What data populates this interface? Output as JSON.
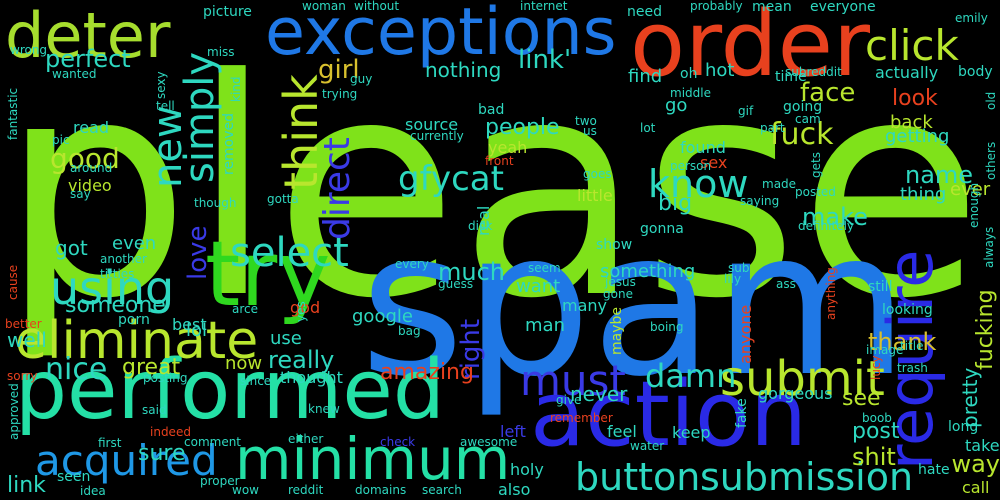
{
  "background": "#000000",
  "words": [
    {
      "text": "please",
      "color": "#7fe21a"
    },
    {
      "text": "spam",
      "color": "#1f78e6"
    },
    {
      "text": "order",
      "color": "#e8411e"
    },
    {
      "text": "exceptions",
      "color": "#1f78e6"
    },
    {
      "text": "deter",
      "color": "#a6dd2e"
    },
    {
      "text": "try",
      "color": "#2fd81f"
    },
    {
      "text": "performed",
      "color": "#24e0a6"
    },
    {
      "text": "action",
      "color": "#2a2ae6"
    },
    {
      "text": "minimum",
      "color": "#24e0a6"
    },
    {
      "text": "eliminate",
      "color": "#b8e62e"
    },
    {
      "text": "require",
      "color": "#2a2ae6"
    },
    {
      "text": "submit",
      "color": "#b8e62e"
    },
    {
      "text": "acquired",
      "color": "#1f98e6"
    },
    {
      "text": "click",
      "color": "#b8e62e"
    },
    {
      "text": "button",
      "color": "#2ed8c0"
    },
    {
      "text": "submission",
      "color": "#2ed8c0"
    },
    {
      "text": "must",
      "color": "#3a3ae6"
    },
    {
      "text": "using",
      "color": "#2ed8c0"
    },
    {
      "text": "select",
      "color": "#2ed8c0"
    },
    {
      "text": "think",
      "color": "#b8e62e"
    },
    {
      "text": "direct",
      "color": "#3a3ae6"
    },
    {
      "text": "new",
      "color": "#2ed8c0"
    },
    {
      "text": "simply",
      "color": "#2ed8c0"
    },
    {
      "text": "know",
      "color": "#2ed8c0"
    },
    {
      "text": "gfycat",
      "color": "#2ed8c0"
    },
    {
      "text": "nice",
      "color": "#2ed8c0"
    },
    {
      "text": "damn",
      "color": "#2ed8c0"
    },
    {
      "text": "link'",
      "color": "#2ed8c0"
    },
    {
      "text": "perfect",
      "color": "#2ed8c0"
    },
    {
      "text": "girl",
      "color": "#d8c02e"
    },
    {
      "text": "love",
      "color": "#3a3ae6"
    },
    {
      "text": "good",
      "color": "#b8e62e"
    },
    {
      "text": "people",
      "color": "#2ed8c0"
    },
    {
      "text": "fuck",
      "color": "#b8e62e"
    },
    {
      "text": "face",
      "color": "#b8e62e"
    },
    {
      "text": "name",
      "color": "#2ed8c0"
    },
    {
      "text": "really",
      "color": "#2ed8c0"
    },
    {
      "text": "someone",
      "color": "#2ed8c0"
    },
    {
      "text": "fucking",
      "color": "#b8e62e"
    },
    {
      "text": "thank",
      "color": "#d8c02e"
    },
    {
      "text": "great",
      "color": "#b8e62e"
    },
    {
      "text": "sure",
      "color": "#2ed8c0"
    },
    {
      "text": "shit",
      "color": "#b8e62e"
    },
    {
      "text": "make",
      "color": "#2ed8c0"
    },
    {
      "text": "post",
      "color": "#2ed8c0"
    },
    {
      "text": "way",
      "color": "#b8e62e"
    },
    {
      "text": "see",
      "color": "#b8e62e"
    },
    {
      "text": "pretty",
      "color": "#2ed8c0"
    },
    {
      "text": "right",
      "color": "#3a3ae6"
    },
    {
      "text": "amazing",
      "color": "#e8411e"
    },
    {
      "text": "much",
      "color": "#2ed8c0"
    },
    {
      "text": "got",
      "color": "#2ed8c0"
    },
    {
      "text": "even",
      "color": "#2ed8c0"
    },
    {
      "text": "link",
      "color": "#2ed8c0"
    },
    {
      "text": "well",
      "color": "#2ed8c0"
    },
    {
      "text": "now",
      "color": "#b8e62e"
    },
    {
      "text": "never",
      "color": "#2ed8c0"
    },
    {
      "text": "look",
      "color": "#e8411e"
    },
    {
      "text": "hot",
      "color": "#2ed8c0"
    },
    {
      "text": "find",
      "color": "#2ed8c0"
    },
    {
      "text": "nothing",
      "color": "#2ed8c0"
    },
    {
      "text": "go",
      "color": "#2ed8c0"
    },
    {
      "text": "big",
      "color": "#2ed8c0"
    },
    {
      "text": "video",
      "color": "#b8e62e"
    },
    {
      "text": "read",
      "color": "#2ed8c0"
    },
    {
      "text": "source",
      "color": "#2ed8c0"
    },
    {
      "text": "yeah",
      "color": "#b8e62e"
    },
    {
      "text": "found",
      "color": "#2ed8c0"
    },
    {
      "text": "sex",
      "color": "#e8411e"
    },
    {
      "text": "little",
      "color": "#b8e62e"
    },
    {
      "text": "thing",
      "color": "#2ed8c0"
    },
    {
      "text": "ever",
      "color": "#b8e62e"
    },
    {
      "text": "back",
      "color": "#b8e62e"
    },
    {
      "text": "getting",
      "color": "#2ed8c0"
    },
    {
      "text": "actually",
      "color": "#2ed8c0"
    },
    {
      "text": "gorgeous",
      "color": "#2ed8c0"
    },
    {
      "text": "google",
      "color": "#2ed8c0"
    },
    {
      "text": "man",
      "color": "#2ed8c0"
    },
    {
      "text": "want",
      "color": "#2ed8c0"
    },
    {
      "text": "many",
      "color": "#2ed8c0"
    },
    {
      "text": "something",
      "color": "#2ed8c0"
    },
    {
      "text": "lol",
      "color": "#2ed8c0"
    },
    {
      "text": "best",
      "color": "#2ed8c0"
    },
    {
      "text": "use",
      "color": "#2ed8c0"
    },
    {
      "text": "thought",
      "color": "#2ed8c0"
    },
    {
      "text": "keep",
      "color": "#2ed8c0"
    },
    {
      "text": "feel",
      "color": "#2ed8c0"
    },
    {
      "text": "left",
      "color": "#3a3ae6"
    },
    {
      "text": "holy",
      "color": "#2ed8c0"
    },
    {
      "text": "also",
      "color": "#2ed8c0"
    },
    {
      "text": "call",
      "color": "#b8e62e"
    },
    {
      "text": "take",
      "color": "#2ed8c0"
    },
    {
      "text": "hate",
      "color": "#2ed8c0"
    },
    {
      "text": "long",
      "color": "#2ed8c0"
    },
    {
      "text": "anyone",
      "color": "#e8411e"
    },
    {
      "text": "maybe",
      "color": "#b8e62e"
    },
    {
      "text": "still",
      "color": "#2ed8c0"
    },
    {
      "text": "looking",
      "color": "#2ed8c0"
    },
    {
      "text": "real",
      "color": "#2ed8c0"
    },
    {
      "text": "gonna",
      "color": "#2ed8c0"
    },
    {
      "text": "show",
      "color": "#2ed8c0"
    },
    {
      "text": "god",
      "color": "#e8411e"
    },
    {
      "text": "porn",
      "color": "#2ed8c0"
    },
    {
      "text": "seen",
      "color": "#2ed8c0"
    },
    {
      "text": "sorry",
      "color": "#e8411e"
    },
    {
      "text": "better",
      "color": "#e8411e"
    },
    {
      "text": "cause",
      "color": "#e8411e"
    },
    {
      "text": "approved",
      "color": "#2ed8c0"
    },
    {
      "text": "fantastic",
      "color": "#2ed8c0"
    },
    {
      "text": "wrong",
      "color": "#2ed8c0"
    },
    {
      "text": "wanted",
      "color": "#2ed8c0"
    },
    {
      "text": "pic",
      "color": "#2ed8c0"
    },
    {
      "text": "around",
      "color": "#2ed8c0"
    },
    {
      "text": "say",
      "color": "#2ed8c0"
    },
    {
      "text": "removed",
      "color": "#2ed8c0"
    },
    {
      "text": "though",
      "color": "#2ed8c0"
    },
    {
      "text": "gotta",
      "color": "#2ed8c0"
    },
    {
      "text": "sexy",
      "color": "#2ed8c0"
    },
    {
      "text": "tell",
      "color": "#2ed8c0"
    },
    {
      "text": "kind",
      "color": "#2ed8c0"
    },
    {
      "text": "guy",
      "color": "#2ed8c0"
    },
    {
      "text": "trying",
      "color": "#2ed8c0"
    },
    {
      "text": "miss",
      "color": "#2ed8c0"
    },
    {
      "text": "picture",
      "color": "#2ed8c0"
    },
    {
      "text": "woman",
      "color": "#2ed8c0"
    },
    {
      "text": "without",
      "color": "#2ed8c0"
    },
    {
      "text": "internet",
      "color": "#2ed8c0"
    },
    {
      "text": "need",
      "color": "#2ed8c0"
    },
    {
      "text": "probably",
      "color": "#2ed8c0"
    },
    {
      "text": "mean",
      "color": "#2ed8c0"
    },
    {
      "text": "everyone",
      "color": "#2ed8c0"
    },
    {
      "text": "emily",
      "color": "#2ed8c0"
    },
    {
      "text": "body",
      "color": "#2ed8c0"
    },
    {
      "text": "old",
      "color": "#2ed8c0"
    },
    {
      "text": "others",
      "color": "#2ed8c0"
    },
    {
      "text": "enough",
      "color": "#2ed8c0"
    },
    {
      "text": "always",
      "color": "#2ed8c0"
    },
    {
      "text": "subreddit",
      "color": "#2ed8c0"
    },
    {
      "text": "time",
      "color": "#2ed8c0"
    },
    {
      "text": "oh",
      "color": "#2ed8c0"
    },
    {
      "text": "middle",
      "color": "#2ed8c0"
    },
    {
      "text": "gif",
      "color": "#2ed8c0"
    },
    {
      "text": "part",
      "color": "#2ed8c0"
    },
    {
      "text": "cam",
      "color": "#2ed8c0"
    },
    {
      "text": "going",
      "color": "#2ed8c0"
    },
    {
      "text": "lot",
      "color": "#2ed8c0"
    },
    {
      "text": "person",
      "color": "#2ed8c0"
    },
    {
      "text": "two",
      "color": "#2ed8c0"
    },
    {
      "text": "us",
      "color": "#2ed8c0"
    },
    {
      "text": "bad",
      "color": "#2ed8c0"
    },
    {
      "text": "currently",
      "color": "#2ed8c0"
    },
    {
      "text": "front",
      "color": "#e8411e"
    },
    {
      "text": "goes",
      "color": "#2ed8c0"
    },
    {
      "text": "made",
      "color": "#2ed8c0"
    },
    {
      "text": "saying",
      "color": "#2ed8c0"
    },
    {
      "text": "gets",
      "color": "#2ed8c0"
    },
    {
      "text": "posted",
      "color": "#2ed8c0"
    },
    {
      "text": "definitely",
      "color": "#2ed8c0"
    },
    {
      "text": "another",
      "color": "#2ed8c0"
    },
    {
      "text": "titties",
      "color": "#2ed8c0"
    },
    {
      "text": "every",
      "color": "#2ed8c0"
    },
    {
      "text": "seem",
      "color": "#2ed8c0"
    },
    {
      "text": "jesus",
      "color": "#2ed8c0"
    },
    {
      "text": "gone",
      "color": "#2ed8c0"
    },
    {
      "text": "sub",
      "color": "#2ed8c0"
    },
    {
      "text": "lily",
      "color": "#2ed8c0"
    },
    {
      "text": "ass",
      "color": "#2ed8c0"
    },
    {
      "text": "anything",
      "color": "#e8411e"
    },
    {
      "text": "guess",
      "color": "#2ed8c0"
    },
    {
      "text": "bag",
      "color": "#2ed8c0"
    },
    {
      "text": "arce",
      "color": "#2ed8c0"
    },
    {
      "text": "yes",
      "color": "#2ed8c0"
    },
    {
      "text": "dick",
      "color": "#2ed8c0"
    },
    {
      "text": "boing",
      "color": "#2ed8c0"
    },
    {
      "text": "image",
      "color": "#2ed8c0"
    },
    {
      "text": "title",
      "color": "#2ed8c0"
    },
    {
      "text": "trash",
      "color": "#2ed8c0"
    },
    {
      "text": "lucy",
      "color": "#e8411e"
    },
    {
      "text": "boob",
      "color": "#2ed8c0"
    },
    {
      "text": "water",
      "color": "#2ed8c0"
    },
    {
      "text": "fake",
      "color": "#2ed8c0"
    },
    {
      "text": "remember",
      "color": "#e8411e"
    },
    {
      "text": "give",
      "color": "#2ed8c0"
    },
    {
      "text": "awesome",
      "color": "#2ed8c0"
    },
    {
      "text": "check",
      "color": "#3a3ae6"
    },
    {
      "text": "either",
      "color": "#2ed8c0"
    },
    {
      "text": "comment",
      "color": "#2ed8c0"
    },
    {
      "text": "first",
      "color": "#2ed8c0"
    },
    {
      "text": "indeed",
      "color": "#e8411e"
    },
    {
      "text": "said",
      "color": "#2ed8c0"
    },
    {
      "text": "knew",
      "color": "#2ed8c0"
    },
    {
      "text": "since",
      "color": "#2ed8c0"
    },
    {
      "text": "posting",
      "color": "#2ed8c0"
    },
    {
      "text": "idea",
      "color": "#2ed8c0"
    },
    {
      "text": "wow",
      "color": "#2ed8c0"
    },
    {
      "text": "proper",
      "color": "#2ed8c0"
    },
    {
      "text": "reddit",
      "color": "#2ed8c0"
    },
    {
      "text": "domains",
      "color": "#2ed8c0"
    },
    {
      "text": "search",
      "color": "#2ed8c0"
    }
  ]
}
